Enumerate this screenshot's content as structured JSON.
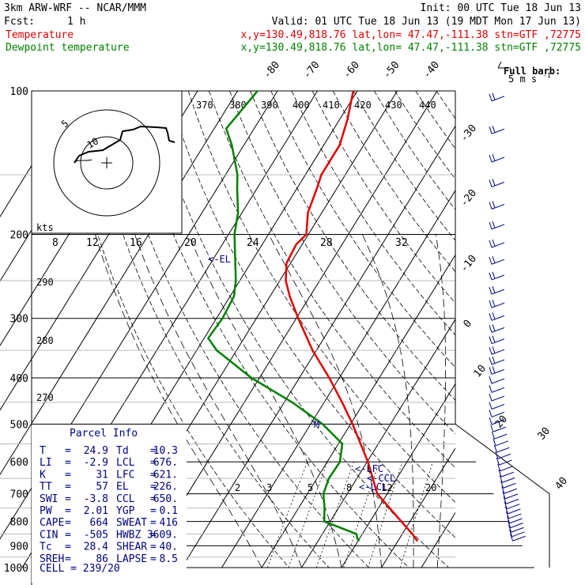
{
  "header": {
    "model": "3km ARW-WRF -- NCAR/MMM",
    "init": "Init: 00 UTC Tue 18 Jun 13",
    "fcst_label": "Fcst:",
    "fcst_value": "1 h",
    "valid": "Valid: 01 UTC Tue 18 Jun 13 (19 MDT Mon 17 Jun 13)"
  },
  "legend": [
    {
      "name": "Temperature",
      "info": "x,y=130.49,818.76   lat,lon= 47.47,-111.38   stn=GTF ,72775",
      "color": "#e00000"
    },
    {
      "name": "Dewpoint temperature",
      "info": "x,y=130.49,818.76   lat,lon= 47.47,-111.38   stn=GTF ,72775",
      "color": "#008000"
    }
  ],
  "barb_key": {
    "title": "Full barb:",
    "value": "5 m s",
    "exp": "-1"
  },
  "chart_data": {
    "type": "skew-t",
    "pressure_axis": {
      "levels": [
        100,
        200,
        300,
        400,
        500,
        600,
        700,
        800,
        900,
        1000
      ],
      "scale": "log"
    },
    "temperature_ticks_top": [
      "-80",
      "-70",
      "-60",
      "-50",
      "-40"
    ],
    "temperature_ticks_right": [
      "-30",
      "-20",
      "-10",
      "0",
      "10",
      "20",
      "30",
      "40"
    ],
    "theta_labels": [
      "370",
      "380",
      "390",
      "400",
      "410",
      "420",
      "430",
      "440"
    ],
    "left_theta_labels": [
      "290",
      "280",
      "270"
    ],
    "hodograph_labels": {
      "kts": "kts",
      "speeds": [
        "8",
        "12",
        "16",
        "20",
        "24",
        "28",
        "32"
      ],
      "rings": [
        "5",
        "10"
      ]
    },
    "mixing_ratio_labels": [
      "2",
      "3",
      "5",
      "8",
      "12",
      "20"
    ],
    "series": [
      {
        "name": "Temperature",
        "color": "#e00000",
        "points": [
          [
            880,
            24.9
          ],
          [
            850,
            22.5
          ],
          [
            800,
            17.8
          ],
          [
            700,
            7.5
          ],
          [
            600,
            0.2
          ],
          [
            500,
            -9.5
          ],
          [
            450,
            -15.5
          ],
          [
            400,
            -22.5
          ],
          [
            350,
            -31
          ],
          [
            300,
            -39.5
          ],
          [
            270,
            -45
          ],
          [
            250,
            -48.5
          ],
          [
            230,
            -51
          ],
          [
            210,
            -51.5
          ],
          [
            200,
            -50.5
          ],
          [
            180,
            -53.5
          ],
          [
            160,
            -55
          ],
          [
            150,
            -56
          ],
          [
            130,
            -56
          ],
          [
            115,
            -58
          ],
          [
            100,
            -61
          ]
        ]
      },
      {
        "name": "Dewpoint temperature",
        "color": "#008000",
        "points": [
          [
            880,
            10.3
          ],
          [
            870,
            9.5
          ],
          [
            850,
            8.5
          ],
          [
            800,
            -1.5
          ],
          [
            750,
            -3.5
          ],
          [
            700,
            -6
          ],
          [
            650,
            -7
          ],
          [
            600,
            -6.8
          ],
          [
            550,
            -9
          ],
          [
            500,
            -17
          ],
          [
            450,
            -28
          ],
          [
            400,
            -42
          ],
          [
            350,
            -55
          ],
          [
            330,
            -59
          ],
          [
            300,
            -58.5
          ],
          [
            270,
            -59
          ],
          [
            250,
            -61
          ],
          [
            200,
            -68.5
          ],
          [
            180,
            -71
          ],
          [
            160,
            -75
          ],
          [
            150,
            -77
          ],
          [
            130,
            -83
          ],
          [
            120,
            -87
          ],
          [
            100,
            -85
          ]
        ]
      }
    ],
    "annotations": [
      "<-EL",
      "<-LFC",
      "<-CCL",
      "<-LCL",
      "M"
    ]
  },
  "parcel_info": {
    "title": "Parcel Info",
    "rows": [
      [
        "T",
        "=",
        "24.9",
        "Td",
        "=",
        "10.3"
      ],
      [
        "LI",
        "=",
        "-2.9",
        "LCL",
        "=",
        "676."
      ],
      [
        "K",
        "=",
        "31",
        "LFC",
        "=",
        "621."
      ],
      [
        "TT",
        "=",
        "57",
        "EL",
        "=",
        "226."
      ],
      [
        "SWI",
        "=",
        "-3.8",
        "CCL",
        "=",
        "650."
      ],
      [
        "PW",
        "=",
        "2.01",
        "YGP",
        "=",
        "0.1"
      ],
      [
        "CAPE",
        "=",
        "664",
        "SWEAT",
        "=",
        "416"
      ],
      [
        "CIN",
        "=",
        "-505",
        "HWBZ",
        "=",
        "3609."
      ],
      [
        "Tc",
        "=",
        "28.4",
        "SHEAR",
        "=",
        "40."
      ],
      [
        "SREH",
        "=",
        "86",
        "LAPSE",
        "=",
        "8.5"
      ]
    ],
    "cell": "CELL = 239/20"
  }
}
